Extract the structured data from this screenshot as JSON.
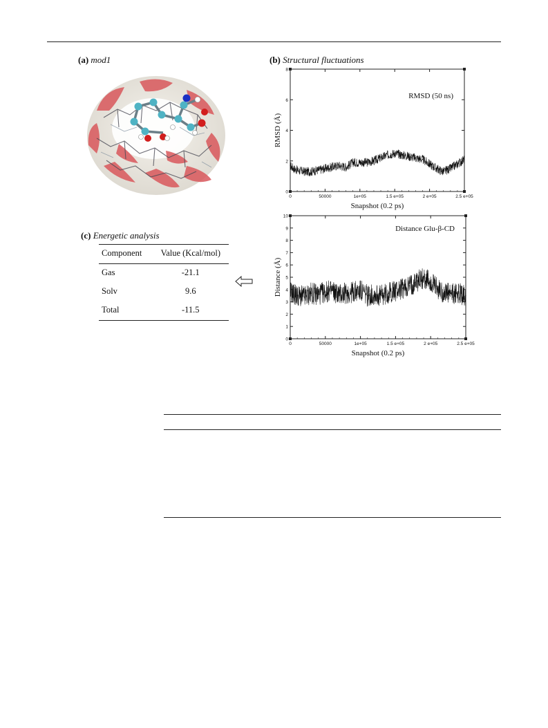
{
  "panels": {
    "a": {
      "letter": "(a)",
      "title": "mod1"
    },
    "b": {
      "letter": "(b)",
      "title": "Structural fluctuations"
    },
    "c": {
      "letter": "(c)",
      "title": "Energetic analysis"
    }
  },
  "energy_table": {
    "headers": [
      "Component",
      "Value (Kcal/mol)"
    ],
    "rows": [
      {
        "component": "Gas",
        "value": "-21.1"
      },
      {
        "component": "Solv",
        "value": "9.6"
      },
      {
        "component": "Total",
        "value": "-11.5"
      }
    ]
  },
  "icons": {
    "arrow": "left-outline-arrow-icon",
    "molecule": "cyclodextrin-complex-render"
  },
  "colors": {
    "surface_red": "#d9585c",
    "surface_white": "#f2efe9",
    "atom_cyan": "#4fb3c4",
    "atom_red": "#d21e1e",
    "atom_blue": "#1a2fc4"
  },
  "chart_data": [
    {
      "type": "line",
      "annotation": "RMSD (50 ns)",
      "xlabel": "Snapshot (0.2 ps)",
      "ylabel": "RMSD (Å)",
      "xlim": [
        0,
        250000
      ],
      "ylim": [
        0,
        8
      ],
      "x_ticks": [
        0,
        50000,
        100000,
        150000,
        200000,
        250000
      ],
      "x_tick_labels": [
        "0",
        "50000",
        "1e+05",
        "1.5 e+05",
        "2 e+05",
        "2.5 e+05"
      ],
      "y_ticks": [
        0,
        2,
        4,
        6,
        8
      ],
      "y_tick_labels": [
        "0",
        "2",
        "4",
        "6",
        "8"
      ],
      "x": [
        0,
        5000,
        10000,
        20000,
        30000,
        40000,
        50000,
        60000,
        70000,
        80000,
        90000,
        100000,
        110000,
        120000,
        130000,
        140000,
        150000,
        160000,
        170000,
        180000,
        190000,
        200000,
        210000,
        220000,
        230000,
        240000,
        250000
      ],
      "values": [
        1.7,
        1.5,
        1.4,
        1.3,
        1.3,
        1.4,
        1.5,
        1.6,
        1.7,
        1.6,
        1.9,
        1.9,
        1.9,
        2.0,
        2.2,
        2.4,
        2.5,
        2.4,
        2.3,
        2.2,
        2.1,
        1.8,
        1.5,
        1.3,
        1.5,
        1.8,
        2.1
      ],
      "noise": 0.3
    },
    {
      "type": "line",
      "annotation": "Distance Glu-β-CD",
      "xlabel": "Snapshot (0.2 ps)",
      "ylabel": "Distance (Å)",
      "xlim": [
        0,
        250000
      ],
      "ylim": [
        0,
        10
      ],
      "x_ticks": [
        0,
        50000,
        100000,
        150000,
        200000,
        250000
      ],
      "x_tick_labels": [
        "0",
        "50000",
        "1e+05",
        "1.5 e+05",
        "2 e+05",
        "2.5 e+05"
      ],
      "y_ticks": [
        0,
        1,
        2,
        3,
        4,
        5,
        6,
        7,
        8,
        9,
        10
      ],
      "y_tick_labels": [
        "0",
        "1",
        "2",
        "3",
        "4",
        "5",
        "6",
        "7",
        "8",
        "9",
        "10"
      ],
      "x": [
        0,
        10000,
        20000,
        30000,
        40000,
        50000,
        60000,
        70000,
        80000,
        90000,
        100000,
        110000,
        120000,
        130000,
        140000,
        150000,
        160000,
        170000,
        180000,
        190000,
        200000,
        210000,
        220000,
        230000,
        240000,
        250000
      ],
      "values": [
        3.8,
        3.5,
        3.4,
        3.7,
        3.6,
        3.8,
        3.9,
        3.6,
        3.7,
        3.8,
        3.9,
        3.5,
        3.6,
        3.5,
        3.7,
        3.9,
        4.1,
        4.3,
        4.7,
        4.9,
        4.6,
        4.0,
        3.7,
        3.6,
        3.7,
        3.5
      ],
      "noise": 0.9
    }
  ]
}
